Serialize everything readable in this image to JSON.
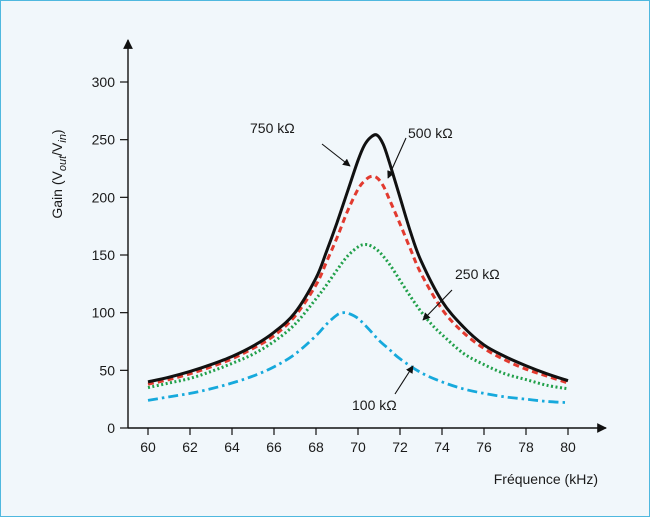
{
  "chart_data": {
    "type": "line",
    "xlabel": "Fréquence (kHz)",
    "ylabel_main": "Gain (V",
    "ylabel_sub1": "out",
    "ylabel_mid": "/V",
    "ylabel_sub2": "in",
    "ylabel_end": ")",
    "xlim": [
      60,
      80
    ],
    "ylim": [
      0,
      300
    ],
    "xticks": [
      "60",
      "62",
      "64",
      "66",
      "68",
      "70",
      "72",
      "74",
      "76",
      "78",
      "80"
    ],
    "yticks": [
      "0",
      "50",
      "100",
      "150",
      "200",
      "250",
      "300"
    ],
    "grid": false,
    "series": [
      {
        "name": "750 kΩ",
        "color": "#111111",
        "style": "solid",
        "x": [
          60,
          61,
          62,
          63,
          64,
          65,
          66,
          67,
          68,
          68.5,
          69,
          69.5,
          70,
          70.3,
          70.6,
          70.9,
          71.2,
          71.5,
          72,
          72.5,
          73,
          74,
          75,
          76,
          77,
          78,
          79,
          80
        ],
        "y": [
          40,
          44,
          49,
          55,
          62,
          71,
          83,
          100,
          130,
          153,
          178,
          205,
          232,
          245,
          252,
          254,
          246,
          230,
          200,
          170,
          145,
          110,
          88,
          72,
          62,
          54,
          47,
          41
        ]
      },
      {
        "name": "500 kΩ",
        "color": "#e23a2f",
        "style": "dashed",
        "x": [
          60,
          61,
          62,
          63,
          64,
          65,
          66,
          67,
          68,
          68.5,
          69,
          69.5,
          70,
          70.3,
          70.6,
          70.9,
          71.2,
          71.5,
          72,
          72.5,
          73,
          74,
          75,
          76,
          77,
          78,
          79,
          80
        ],
        "y": [
          38,
          42,
          47,
          53,
          60,
          69,
          80,
          97,
          124,
          144,
          165,
          188,
          207,
          214,
          218,
          217,
          210,
          198,
          177,
          155,
          134,
          103,
          83,
          69,
          59,
          51,
          45,
          39
        ]
      },
      {
        "name": "250 kΩ",
        "color": "#21a04a",
        "style": "dotted",
        "x": [
          60,
          61,
          62,
          63,
          64,
          65,
          66,
          67,
          68,
          68.5,
          69,
          69.5,
          70,
          70.3,
          70.6,
          71,
          71.5,
          72,
          72.5,
          73,
          73.5,
          74,
          75,
          76,
          77,
          78,
          79,
          80
        ],
        "y": [
          35,
          39,
          43,
          49,
          56,
          64,
          75,
          90,
          112,
          124,
          137,
          149,
          157,
          159,
          158,
          153,
          142,
          128,
          114,
          101,
          90,
          81,
          65,
          55,
          47,
          42,
          37,
          34
        ]
      },
      {
        "name": "100 kΩ",
        "color": "#16a9dc",
        "style": "dashdot",
        "x": [
          60,
          61,
          62,
          63,
          64,
          65,
          66,
          67,
          68,
          68.5,
          69,
          69.3,
          69.6,
          70,
          70.5,
          71,
          71.5,
          72,
          73,
          74,
          75,
          76,
          77,
          78,
          79,
          80
        ],
        "y": [
          24,
          27,
          30,
          34,
          39,
          45,
          53,
          64,
          80,
          90,
          98,
          100,
          99,
          95,
          86,
          76,
          68,
          60,
          48,
          40,
          34,
          30,
          27,
          25,
          23,
          22
        ]
      }
    ],
    "labels": [
      {
        "series": "750 kΩ",
        "text": "750 kΩ"
      },
      {
        "series": "500 kΩ",
        "text": "500 kΩ"
      },
      {
        "series": "250 kΩ",
        "text": "250 kΩ"
      },
      {
        "series": "100 kΩ",
        "text": "100 kΩ"
      }
    ]
  }
}
